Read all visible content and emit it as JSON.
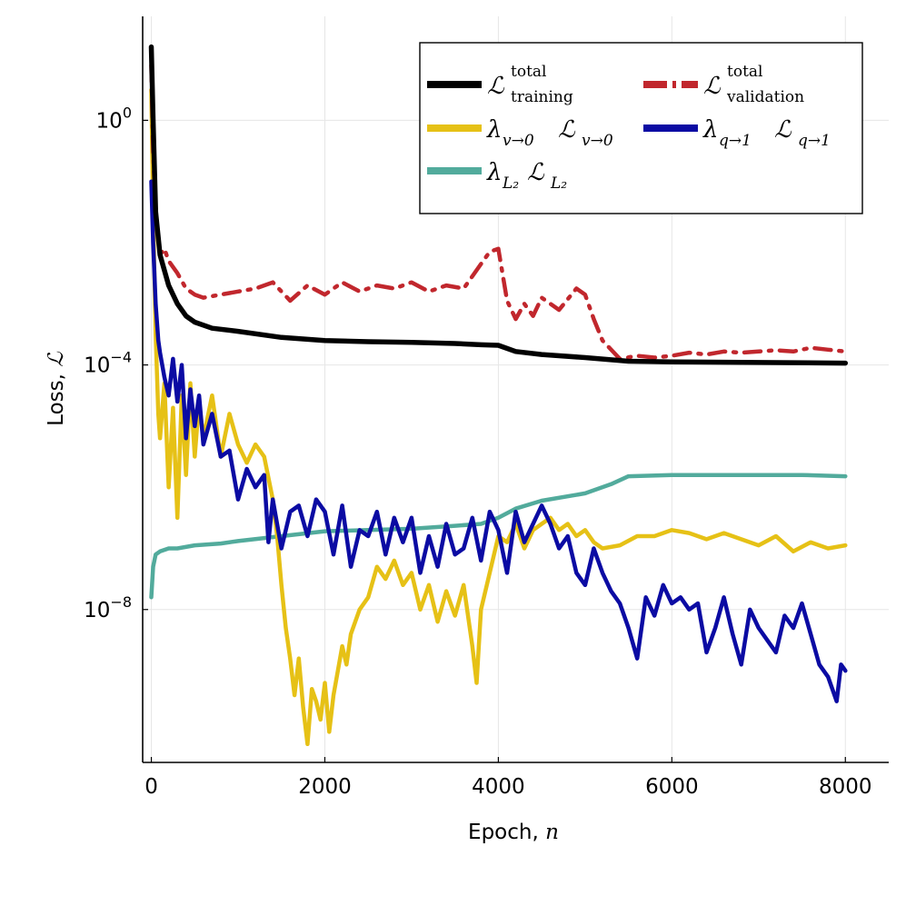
{
  "chart_data": {
    "type": "line",
    "title": "",
    "xlabel": {
      "text": "Epoch, ",
      "symbol": "n"
    },
    "ylabel": {
      "text": "Loss, ",
      "symbol": "ℒ"
    },
    "xlim": [
      -100,
      8500
    ],
    "ylog10_lim": [
      -10.5,
      1.7
    ],
    "xticks": [
      0,
      2000,
      4000,
      6000,
      8000
    ],
    "xtick_labels": [
      "0",
      "2000",
      "4000",
      "6000",
      "8000"
    ],
    "yticks_log10": [
      0,
      -4,
      -8
    ],
    "ytick_labels": [
      {
        "base": "10",
        "exp": "0"
      },
      {
        "base": "10",
        "exp": "−4"
      },
      {
        "base": "10",
        "exp": "−8"
      }
    ],
    "grid": true,
    "legend_position": "top-right",
    "series": [
      {
        "id": "train",
        "name": "ℒ^total_training",
        "color": "#000000",
        "style": "solid",
        "x": [
          0,
          20,
          50,
          100,
          200,
          300,
          400,
          500,
          700,
          1000,
          1500,
          2000,
          2500,
          3000,
          3500,
          3800,
          4000,
          4200,
          4500,
          5000,
          5500,
          6000,
          7000,
          8000
        ],
        "log10": [
          1.2,
          0.0,
          -1.5,
          -2.2,
          -2.7,
          -3.0,
          -3.2,
          -3.3,
          -3.4,
          -3.45,
          -3.55,
          -3.6,
          -3.62,
          -3.63,
          -3.65,
          -3.67,
          -3.68,
          -3.78,
          -3.83,
          -3.88,
          -3.94,
          -3.95,
          -3.96,
          -3.97
        ]
      },
      {
        "id": "val",
        "name": "ℒ^total_validation",
        "color": "#c1272d",
        "style": "dashdot",
        "x": [
          0,
          20,
          50,
          100,
          150,
          200,
          300,
          400,
          500,
          600,
          800,
          1000,
          1200,
          1400,
          1600,
          1800,
          2000,
          2200,
          2400,
          2600,
          2800,
          3000,
          3200,
          3400,
          3600,
          3700,
          3800,
          3900,
          4000,
          4100,
          4200,
          4300,
          4400,
          4500,
          4700,
          4900,
          5000,
          5100,
          5200,
          5400,
          5600,
          5800,
          6000,
          6200,
          6400,
          6600,
          6800,
          7000,
          7200,
          7400,
          7600,
          7800,
          8000
        ],
        "log10": [
          0.9,
          -0.5,
          -1.5,
          -2.2,
          -2.1,
          -2.3,
          -2.5,
          -2.75,
          -2.85,
          -2.9,
          -2.85,
          -2.8,
          -2.75,
          -2.65,
          -2.95,
          -2.7,
          -2.85,
          -2.65,
          -2.8,
          -2.7,
          -2.75,
          -2.65,
          -2.8,
          -2.7,
          -2.75,
          -2.55,
          -2.35,
          -2.15,
          -2.1,
          -2.95,
          -3.25,
          -3.0,
          -3.2,
          -2.9,
          -3.1,
          -2.75,
          -2.85,
          -3.25,
          -3.6,
          -3.9,
          -3.85,
          -3.88,
          -3.85,
          -3.8,
          -3.83,
          -3.78,
          -3.8,
          -3.78,
          -3.76,
          -3.78,
          -3.72,
          -3.75,
          -3.78
        ]
      },
      {
        "id": "v0",
        "name": "λ_v→0 ℒ_v→0",
        "color": "#e6c116",
        "style": "solid",
        "x": [
          0,
          20,
          50,
          80,
          100,
          150,
          200,
          250,
          300,
          350,
          400,
          450,
          500,
          550,
          600,
          700,
          800,
          900,
          1000,
          1100,
          1200,
          1300,
          1400,
          1450,
          1500,
          1550,
          1600,
          1650,
          1700,
          1750,
          1800,
          1850,
          1900,
          1950,
          2000,
          2050,
          2100,
          2150,
          2200,
          2250,
          2300,
          2400,
          2500,
          2600,
          2700,
          2800,
          2900,
          3000,
          3100,
          3200,
          3300,
          3400,
          3500,
          3600,
          3700,
          3750,
          3800,
          3900,
          4000,
          4100,
          4200,
          4300,
          4400,
          4500,
          4600,
          4700,
          4800,
          4900,
          5000,
          5100,
          5200,
          5400,
          5600,
          5800,
          6000,
          6200,
          6400,
          6600,
          6800,
          7000,
          7200,
          7400,
          7600,
          7800,
          8000
        ],
        "log10": [
          0.5,
          -1.5,
          -3.5,
          -4.8,
          -5.2,
          -4.3,
          -6.0,
          -4.7,
          -6.5,
          -4.5,
          -5.8,
          -4.3,
          -5.5,
          -4.6,
          -5.2,
          -4.5,
          -5.5,
          -4.8,
          -5.3,
          -5.6,
          -5.3,
          -5.5,
          -6.2,
          -6.8,
          -7.6,
          -8.3,
          -8.8,
          -9.4,
          -8.8,
          -9.6,
          -10.2,
          -9.3,
          -9.5,
          -9.8,
          -9.2,
          -10.0,
          -9.4,
          -9.0,
          -8.6,
          -8.9,
          -8.4,
          -8.0,
          -7.8,
          -7.3,
          -7.5,
          -7.2,
          -7.6,
          -7.4,
          -8.0,
          -7.6,
          -8.2,
          -7.7,
          -8.1,
          -7.6,
          -8.6,
          -9.2,
          -8.0,
          -7.4,
          -6.8,
          -6.9,
          -6.6,
          -7.0,
          -6.7,
          -6.6,
          -6.5,
          -6.7,
          -6.6,
          -6.8,
          -6.7,
          -6.9,
          -7.0,
          -6.95,
          -6.8,
          -6.8,
          -6.7,
          -6.75,
          -6.85,
          -6.75,
          -6.85,
          -6.95,
          -6.8,
          -7.05,
          -6.9,
          -7.0,
          -6.95
        ]
      },
      {
        "id": "q1",
        "name": "λ_q→1 ℒ_q→1",
        "color": "#0b0ba3",
        "style": "solid",
        "x": [
          0,
          20,
          50,
          80,
          100,
          150,
          200,
          250,
          300,
          350,
          400,
          450,
          500,
          550,
          600,
          700,
          800,
          900,
          1000,
          1100,
          1200,
          1300,
          1350,
          1400,
          1500,
          1600,
          1700,
          1800,
          1900,
          2000,
          2100,
          2200,
          2300,
          2400,
          2500,
          2600,
          2700,
          2800,
          2900,
          3000,
          3100,
          3200,
          3300,
          3400,
          3500,
          3600,
          3700,
          3800,
          3900,
          4000,
          4100,
          4200,
          4300,
          4400,
          4500,
          4600,
          4700,
          4800,
          4900,
          5000,
          5100,
          5200,
          5300,
          5400,
          5500,
          5600,
          5700,
          5800,
          5900,
          6000,
          6100,
          6200,
          6300,
          6400,
          6500,
          6600,
          6700,
          6800,
          6900,
          7000,
          7100,
          7200,
          7300,
          7400,
          7500,
          7600,
          7700,
          7800,
          7900,
          7950,
          8000
        ],
        "log10": [
          -1.0,
          -2.0,
          -3.0,
          -3.6,
          -3.8,
          -4.2,
          -4.5,
          -3.9,
          -4.6,
          -4.0,
          -5.2,
          -4.4,
          -5.0,
          -4.5,
          -5.3,
          -4.8,
          -5.5,
          -5.4,
          -6.2,
          -5.7,
          -6.0,
          -5.8,
          -6.9,
          -6.2,
          -7.0,
          -6.4,
          -6.3,
          -6.8,
          -6.2,
          -6.4,
          -7.1,
          -6.3,
          -7.3,
          -6.7,
          -6.8,
          -6.4,
          -7.1,
          -6.5,
          -6.9,
          -6.5,
          -7.4,
          -6.8,
          -7.3,
          -6.6,
          -7.1,
          -7.0,
          -6.5,
          -7.2,
          -6.4,
          -6.7,
          -7.4,
          -6.4,
          -6.9,
          -6.6,
          -6.3,
          -6.6,
          -7.0,
          -6.8,
          -7.4,
          -7.6,
          -7.0,
          -7.4,
          -7.7,
          -7.9,
          -8.3,
          -8.8,
          -7.8,
          -8.1,
          -7.6,
          -7.9,
          -7.8,
          -8.0,
          -7.9,
          -8.7,
          -8.3,
          -7.8,
          -8.4,
          -8.9,
          -8.0,
          -8.3,
          -8.5,
          -8.7,
          -8.1,
          -8.3,
          -7.9,
          -8.4,
          -8.9,
          -9.1,
          -9.5,
          -8.9,
          -9.0
        ]
      },
      {
        "id": "l2",
        "name": "λ_L2 ℒ_L2",
        "color": "#52ab9c",
        "style": "solid",
        "x": [
          0,
          20,
          50,
          100,
          200,
          300,
          500,
          800,
          1000,
          1500,
          2000,
          2500,
          3000,
          3500,
          3800,
          4000,
          4200,
          4500,
          5000,
          5300,
          5500,
          6000,
          6500,
          7000,
          7500,
          8000
        ],
        "log10": [
          -7.8,
          -7.3,
          -7.1,
          -7.05,
          -7.0,
          -7.0,
          -6.95,
          -6.92,
          -6.88,
          -6.8,
          -6.72,
          -6.7,
          -6.68,
          -6.63,
          -6.6,
          -6.5,
          -6.35,
          -6.22,
          -6.1,
          -5.95,
          -5.82,
          -5.8,
          -5.8,
          -5.8,
          -5.8,
          -5.82
        ]
      }
    ],
    "legend": [
      {
        "id": "train",
        "base": "ℒ",
        "sup": "total",
        "sub": "training"
      },
      {
        "id": "val",
        "base": "ℒ",
        "sup": "total",
        "sub": "validation"
      },
      {
        "id": "v0",
        "lam": "λ",
        "lamsub": "v→0",
        "base": "ℒ",
        "sub": "v→0"
      },
      {
        "id": "q1",
        "lam": "λ",
        "lamsub": "q→1",
        "base": "ℒ",
        "sub": "q→1"
      },
      {
        "id": "l2",
        "lam": "λ",
        "lamsub": "L₂",
        "base": "ℒ",
        "sub": "L₂"
      }
    ]
  }
}
